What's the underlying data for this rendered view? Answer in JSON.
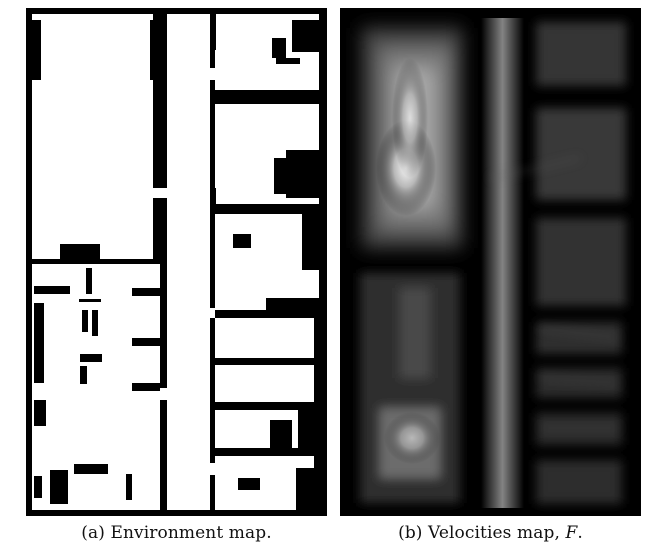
{
  "figure": {
    "captions": {
      "a": "(a) Environment map.",
      "b": "(b) Velocities map, ",
      "b_symbol": "F",
      "b_end": "."
    }
  },
  "colors": {
    "free_space": "#ffffff",
    "obstacle": "#000000",
    "velocity_high": "#f4f4f4",
    "velocity_low": "#000000"
  }
}
